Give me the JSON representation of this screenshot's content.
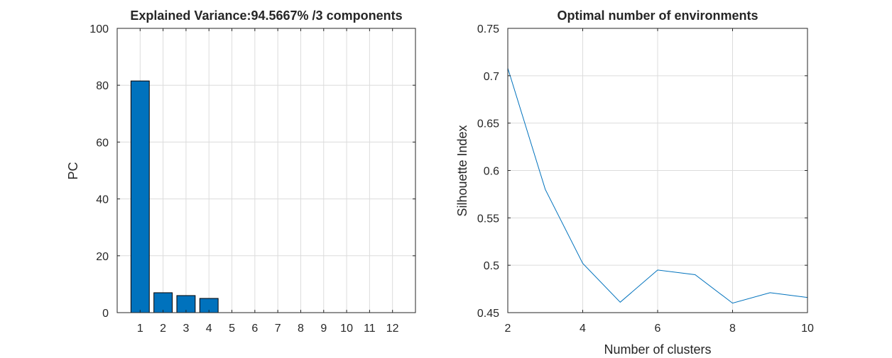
{
  "chart_data": [
    {
      "type": "bar",
      "title": "Explained Variance:94.5667% /3 components",
      "xlabel": "",
      "ylabel": "PC",
      "categories": [
        "1",
        "2",
        "3",
        "4",
        "5",
        "6",
        "7",
        "8",
        "9",
        "10",
        "11",
        "12"
      ],
      "values": [
        81.5,
        7.0,
        6.0,
        5.0,
        0,
        0,
        0,
        0,
        0,
        0,
        0,
        0
      ],
      "ylim": [
        0,
        100
      ],
      "yticks": [
        0,
        20,
        40,
        60,
        80,
        100
      ],
      "grid": true,
      "bar_color": "#0072BD"
    },
    {
      "type": "line",
      "title": "Optimal number of environments",
      "xlabel": "Number of clusters",
      "ylabel": "Silhouette Index",
      "x": [
        2,
        3,
        4,
        5,
        6,
        7,
        8,
        9,
        10
      ],
      "y": [
        0.708,
        0.58,
        0.502,
        0.461,
        0.495,
        0.49,
        0.46,
        0.471,
        0.466
      ],
      "xlim": [
        2,
        10
      ],
      "ylim": [
        0.45,
        0.75
      ],
      "xticks": [
        2,
        4,
        6,
        8,
        10
      ],
      "yticks": [
        "0.45",
        "0.5",
        "0.55",
        "0.6",
        "0.65",
        "0.7",
        "0.75"
      ],
      "grid": true,
      "line_color": "#0072BD"
    }
  ]
}
